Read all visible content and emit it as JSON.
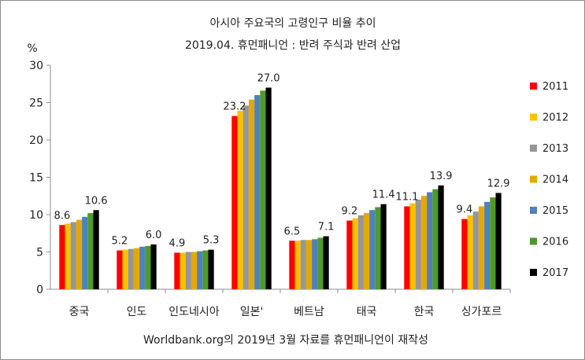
{
  "chart_data": {
    "type": "bar",
    "title": "아시아 주요국의 고령인구 비율 추이",
    "subtitle": "2019.04. 휴먼패니언 : 반려 주식과 반려 산업",
    "ylabel": "%",
    "ylim": [
      0,
      30
    ],
    "yticks": [
      "0",
      "5",
      "10",
      "15",
      "20",
      "25",
      "30"
    ],
    "grid": false,
    "legend_position": "right",
    "source": "Worldbank.org의 2019년 3월 자료를 휴먼패니언이 재작성",
    "categories": [
      "중국",
      "인도",
      "인도네시아",
      "일본'",
      "베트남",
      "태국",
      "한국",
      "싱가포르"
    ],
    "series": [
      {
        "name": "2011",
        "color": "#ff0000",
        "values": [
          8.6,
          5.2,
          4.9,
          23.2,
          6.5,
          9.2,
          11.1,
          9.4
        ]
      },
      {
        "name": "2012",
        "color": "#ffc000",
        "values": [
          8.8,
          5.3,
          4.9,
          23.9,
          6.5,
          9.5,
          11.5,
          9.9
        ]
      },
      {
        "name": "2013",
        "color": "#969696",
        "values": [
          9.0,
          5.4,
          5.0,
          24.6,
          6.6,
          9.9,
          12.0,
          10.4
        ]
      },
      {
        "name": "2014",
        "color": "#e6a800",
        "values": [
          9.3,
          5.5,
          5.0,
          25.4,
          6.6,
          10.2,
          12.5,
          11.1
        ]
      },
      {
        "name": "2015",
        "color": "#4f81bd",
        "values": [
          9.7,
          5.7,
          5.1,
          26.0,
          6.7,
          10.6,
          13.0,
          11.7
        ]
      },
      {
        "name": "2016",
        "color": "#4e9a2d",
        "values": [
          10.2,
          5.8,
          5.2,
          26.6,
          6.9,
          11.0,
          13.4,
          12.3
        ]
      },
      {
        "name": "2017",
        "color": "#000000",
        "values": [
          10.6,
          6.0,
          5.3,
          27.0,
          7.1,
          11.4,
          13.9,
          12.9
        ]
      }
    ],
    "data_labels": [
      {
        "category": "중국",
        "series": "2011",
        "text": "8.6"
      },
      {
        "category": "중국",
        "series": "2017",
        "text": "10.6"
      },
      {
        "category": "인도",
        "series": "2011",
        "text": "5.2"
      },
      {
        "category": "인도",
        "series": "2017",
        "text": "6.0"
      },
      {
        "category": "인도네시아",
        "series": "2011",
        "text": "4.9"
      },
      {
        "category": "인도네시아",
        "series": "2017",
        "text": "5.3"
      },
      {
        "category": "일본'",
        "series": "2011",
        "text": "23.2"
      },
      {
        "category": "일본'",
        "series": "2017",
        "text": "27.0"
      },
      {
        "category": "베트남",
        "series": "2011",
        "text": "6.5"
      },
      {
        "category": "베트남",
        "series": "2017",
        "text": "7.1"
      },
      {
        "category": "태국",
        "series": "2011",
        "text": "9.2"
      },
      {
        "category": "태국",
        "series": "2017",
        "text": "11.4"
      },
      {
        "category": "한국",
        "series": "2011",
        "text": "11.1"
      },
      {
        "category": "한국",
        "series": "2017",
        "text": "13.9"
      },
      {
        "category": "싱가포르",
        "series": "2011",
        "text": "9.4"
      },
      {
        "category": "싱가포르",
        "series": "2017",
        "text": "12.9"
      }
    ]
  }
}
